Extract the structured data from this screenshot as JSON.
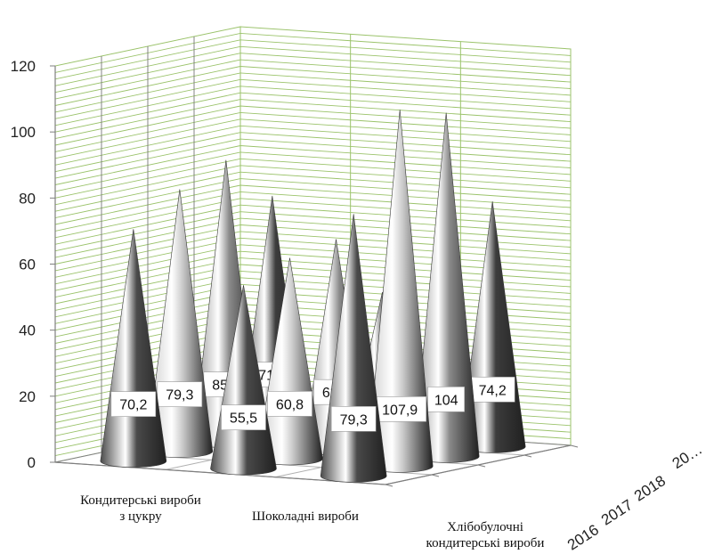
{
  "chart_data": {
    "type": "bar",
    "subtype": "3d-cone",
    "title": "",
    "xlabel": "",
    "ylabel": "",
    "ylim": [
      0,
      120
    ],
    "ytick_step": 20,
    "yticks": [
      "0",
      "20",
      "40",
      "60",
      "80",
      "100",
      "120"
    ],
    "grid": true,
    "legend": "none",
    "categories": [
      [
        "Кондитерські вироби",
        "з цукру"
      ],
      [
        "Шоколадні вироби"
      ],
      [
        "Хлібобулочні",
        "кондитерські вироби"
      ]
    ],
    "depth_labels": [
      "2016",
      "2017",
      "2018",
      "20…"
    ],
    "series": [
      {
        "values": [
          70.2,
          55.5,
          79.3
        ],
        "labels": [
          "70,2",
          "55,5",
          "79,3"
        ],
        "color": "#4a4a4a"
      },
      {
        "values": [
          79.3,
          60.8,
          107.9
        ],
        "labels": [
          "79,3",
          "60,8",
          "107,9"
        ],
        "color": "#c8c8c8"
      },
      {
        "values": [
          85.2,
          63.5,
          104
        ],
        "labels": [
          "85,2",
          "63,5",
          "104"
        ],
        "color": "#8a8a8a"
      },
      {
        "values": [
          71.4,
          44.5,
          74.2
        ],
        "labels": [
          "71,4",
          "44,5",
          "74,2"
        ],
        "color": "#3c3c3c"
      }
    ],
    "colors": {
      "grid": "#9bc36b",
      "axis": "#7f7f7f"
    }
  }
}
